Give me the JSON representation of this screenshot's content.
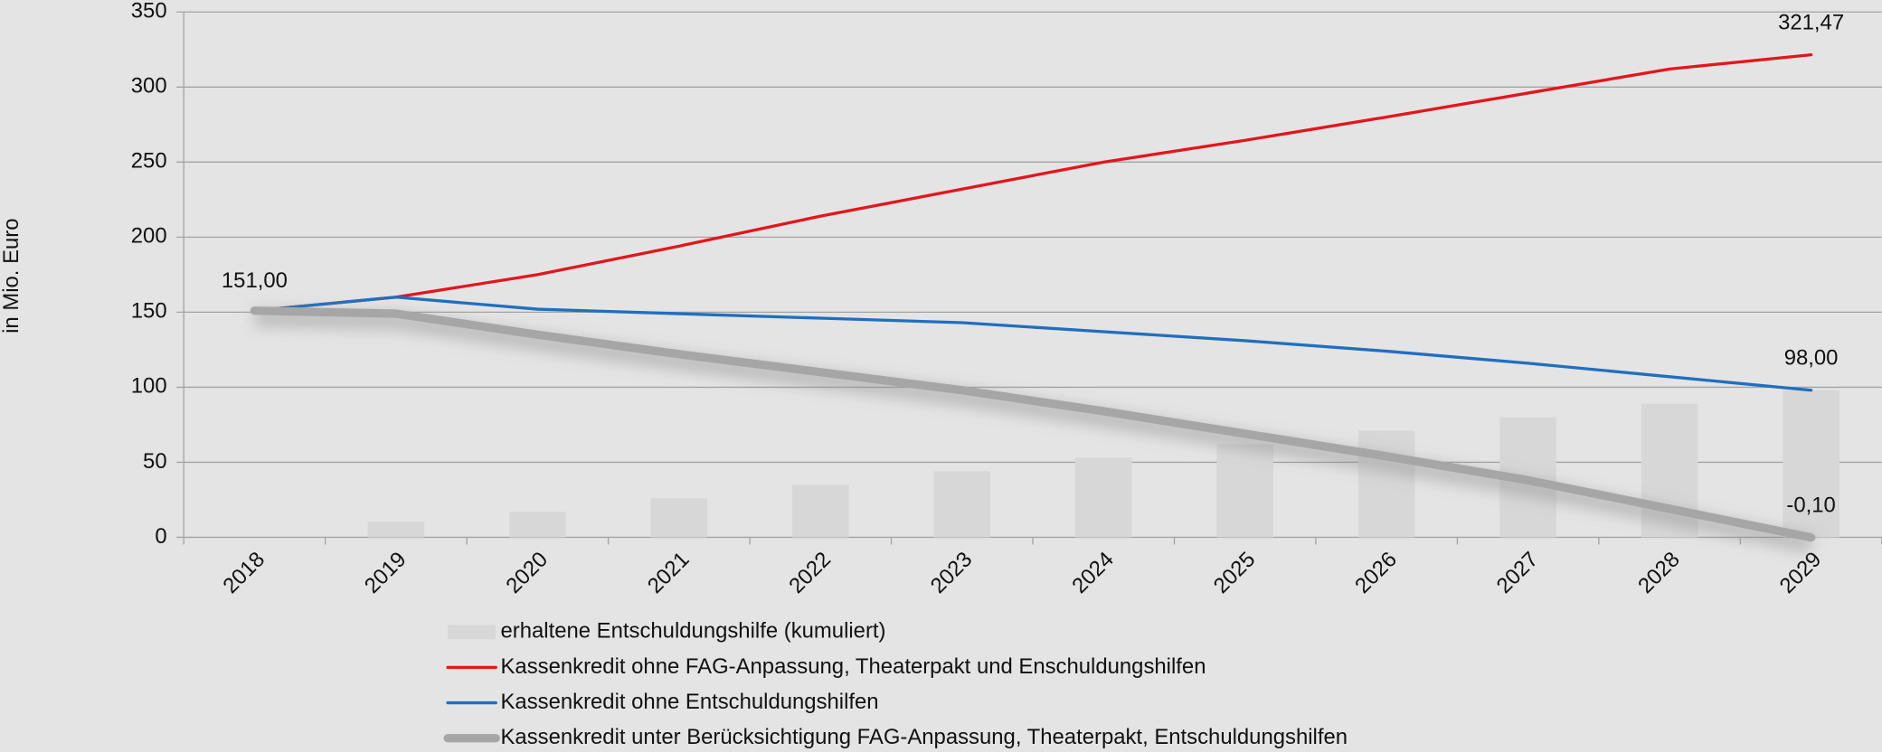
{
  "chart_data": {
    "type": "bar-line",
    "y_label": "in Mio. Euro",
    "categories": [
      "2018",
      "2019",
      "2020",
      "2021",
      "2022",
      "2023",
      "2024",
      "2025",
      "2026",
      "2027",
      "2028",
      "2029"
    ],
    "ylim": [
      0,
      350
    ],
    "yticks": [
      0,
      50,
      100,
      150,
      200,
      250,
      300,
      350
    ],
    "grid": true,
    "legend": "bottom",
    "series": [
      {
        "name": "erhaltene Entschuldungshilfe (kumuliert)",
        "type": "bar",
        "color": "#d7d7d7",
        "values": [
          0,
          10.5,
          17,
          26,
          35,
          44,
          53,
          62,
          71,
          80,
          89,
          98
        ]
      },
      {
        "name": "Kassenkredit ohne FAG-Anpassung, Theaterpakt und Enschuldungshilfen",
        "type": "line",
        "color": "#e3161d",
        "values": [
          151,
          160,
          175,
          194,
          214,
          232,
          250,
          264.5,
          280,
          296,
          312,
          321.47
        ],
        "value_labels": [
          null,
          null,
          null,
          null,
          null,
          null,
          null,
          null,
          null,
          null,
          null,
          "321,47"
        ]
      },
      {
        "name": "Kassenkredit ohne Entschuldungshilfen",
        "type": "line",
        "color": "#1f6fbf",
        "values": [
          151,
          160,
          152,
          149,
          146,
          143,
          137,
          131,
          124,
          116,
          107,
          98
        ],
        "value_labels": [
          null,
          null,
          null,
          null,
          null,
          null,
          null,
          null,
          null,
          null,
          null,
          "98,00"
        ]
      },
      {
        "name": "Kassenkredit unter Berücksichtigung FAG-Anpassung, Theaterpakt, Entschuldungshilfen",
        "type": "line",
        "color": "#a6a6a6",
        "values": [
          151,
          149,
          135,
          122,
          110,
          98,
          84,
          69,
          54,
          38,
          19,
          -0.1
        ],
        "value_labels": [
          "151,00",
          null,
          null,
          null,
          null,
          null,
          null,
          null,
          null,
          null,
          null,
          "-0,10"
        ]
      }
    ]
  }
}
